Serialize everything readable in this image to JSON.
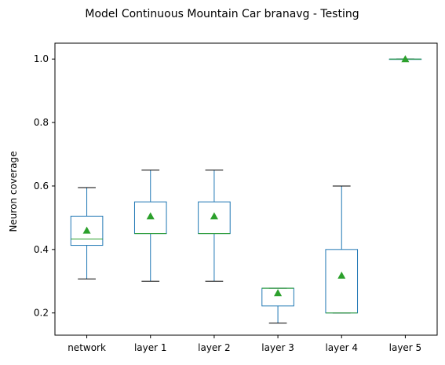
{
  "chart_data": {
    "type": "box",
    "title": "Model Continuous Mountain Car branavg - Testing",
    "xlabel": "",
    "ylabel": "Neuron coverage",
    "ylim": [
      0.13,
      1.05
    ],
    "yticks": [
      0.2,
      0.4,
      0.6,
      0.8,
      1.0
    ],
    "ytick_labels": [
      "0.2",
      "0.4",
      "0.6",
      "0.8",
      "1.0"
    ],
    "grid": false,
    "colors": {
      "box": "#1f77b4",
      "median": "#2ca02c",
      "mean": "#2ca02c",
      "whisker_cap": "#000000"
    },
    "categories": [
      "network",
      "layer 1",
      "layer 2",
      "layer 3",
      "layer 4",
      "layer 5"
    ],
    "boxes": [
      {
        "whislo": 0.307,
        "q1": 0.413,
        "med": 0.433,
        "q3": 0.505,
        "whishi": 0.595,
        "mean": 0.46
      },
      {
        "whislo": 0.3,
        "q1": 0.45,
        "med": 0.45,
        "q3": 0.55,
        "whishi": 0.65,
        "mean": 0.505
      },
      {
        "whislo": 0.3,
        "q1": 0.45,
        "med": 0.45,
        "q3": 0.55,
        "whishi": 0.65,
        "mean": 0.505
      },
      {
        "whislo": 0.168,
        "q1": 0.222,
        "med": 0.278,
        "q3": 0.278,
        "whishi": 0.278,
        "mean": 0.263
      },
      {
        "whislo": 0.2,
        "q1": 0.2,
        "med": 0.2,
        "q3": 0.4,
        "whishi": 0.6,
        "mean": 0.318
      },
      {
        "whislo": 1.0,
        "q1": 1.0,
        "med": 1.0,
        "q3": 1.0,
        "whishi": 1.0,
        "mean": 1.0
      }
    ]
  }
}
